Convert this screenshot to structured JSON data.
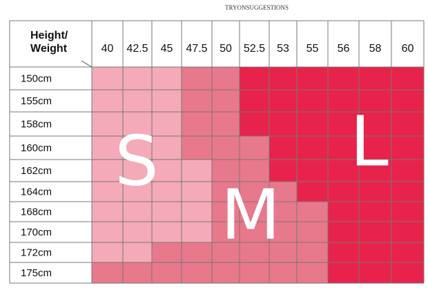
{
  "header": {
    "title": "TRYONSUGGESTIONS"
  },
  "table": {
    "corner": [
      "Height/",
      "Weight"
    ],
    "columns": [
      "40",
      "42.5",
      "45",
      "47.5",
      "50",
      "52.5",
      "53",
      "55",
      "56",
      "58",
      "60"
    ],
    "rows": [
      {
        "label": "150cm",
        "fills": [
          "#f4aab8",
          "#f4aab8",
          "#f4aab8",
          "#e8788c",
          "#e8788c",
          "#e8234b",
          "#e8234b",
          "#e8234b",
          "#e8234b",
          "#e8234b",
          "#e8234b"
        ]
      },
      {
        "label": "155cm",
        "fills": [
          "#f4aab8",
          "#f4aab8",
          "#f4aab8",
          "#e8788c",
          "#e8788c",
          "#e8234b",
          "#e8234b",
          "#e8234b",
          "#e8234b",
          "#e8234b",
          "#e8234b"
        ]
      },
      {
        "label": "158cm",
        "fills": [
          "#f4aab8",
          "#f4aab8",
          "#f4aab8",
          "#e8788c",
          "#e8788c",
          "#e8234b",
          "#e8234b",
          "#e8234b",
          "#e8234b",
          "#e8234b",
          "#e8234b"
        ]
      },
      {
        "label": "160cm",
        "fills": [
          "#f4aab8",
          "#f4aab8",
          "#f4aab8",
          "#e8788c",
          "#e8788c",
          "#e8788c",
          "#e8234b",
          "#e8234b",
          "#e8234b",
          "#e8234b",
          "#e8234b"
        ]
      },
      {
        "label": "162cm",
        "fills": [
          "#f4aab8",
          "#f4aab8",
          "#f4aab8",
          "#f4aab8",
          "#e8788c",
          "#e8788c",
          "#e8234b",
          "#e8234b",
          "#e8234b",
          "#e8234b",
          "#e8234b"
        ]
      },
      {
        "label": "164cm",
        "fills": [
          "#f4aab8",
          "#f4aab8",
          "#f4aab8",
          "#f4aab8",
          "#e8788c",
          "#e8788c",
          "#e8788c",
          "#e8234b",
          "#e8234b",
          "#e8234b",
          "#e8234b"
        ]
      },
      {
        "label": "168cm",
        "fills": [
          "#f4aab8",
          "#f4aab8",
          "#f4aab8",
          "#f4aab8",
          "#e8788c",
          "#e8788c",
          "#e8788c",
          "#e8788c",
          "#e8234b",
          "#e8234b",
          "#e8234b"
        ]
      },
      {
        "label": "170cm",
        "fills": [
          "#f4aab8",
          "#f4aab8",
          "#f4aab8",
          "#f4aab8",
          "#e8788c",
          "#e8788c",
          "#e8788c",
          "#e8788c",
          "#e8234b",
          "#e8234b",
          "#e8234b"
        ]
      },
      {
        "label": "172cm",
        "fills": [
          "#f4aab8",
          "#f4aab8",
          "#e8788c",
          "#e8788c",
          "#e8788c",
          "#e8788c",
          "#e8788c",
          "#e8788c",
          "#e8234b",
          "#e8234b",
          "#e8234b"
        ]
      },
      {
        "label": "175cm",
        "fills": [
          "#e8788c",
          "#e8788c",
          "#e8788c",
          "#e8788c",
          "#e8788c",
          "#e8788c",
          "#e8788c",
          "#e8788c",
          "#e8234b",
          "#e8234b",
          "#e8234b"
        ]
      }
    ],
    "sizes": [
      "S",
      "M",
      "L"
    ]
  }
}
